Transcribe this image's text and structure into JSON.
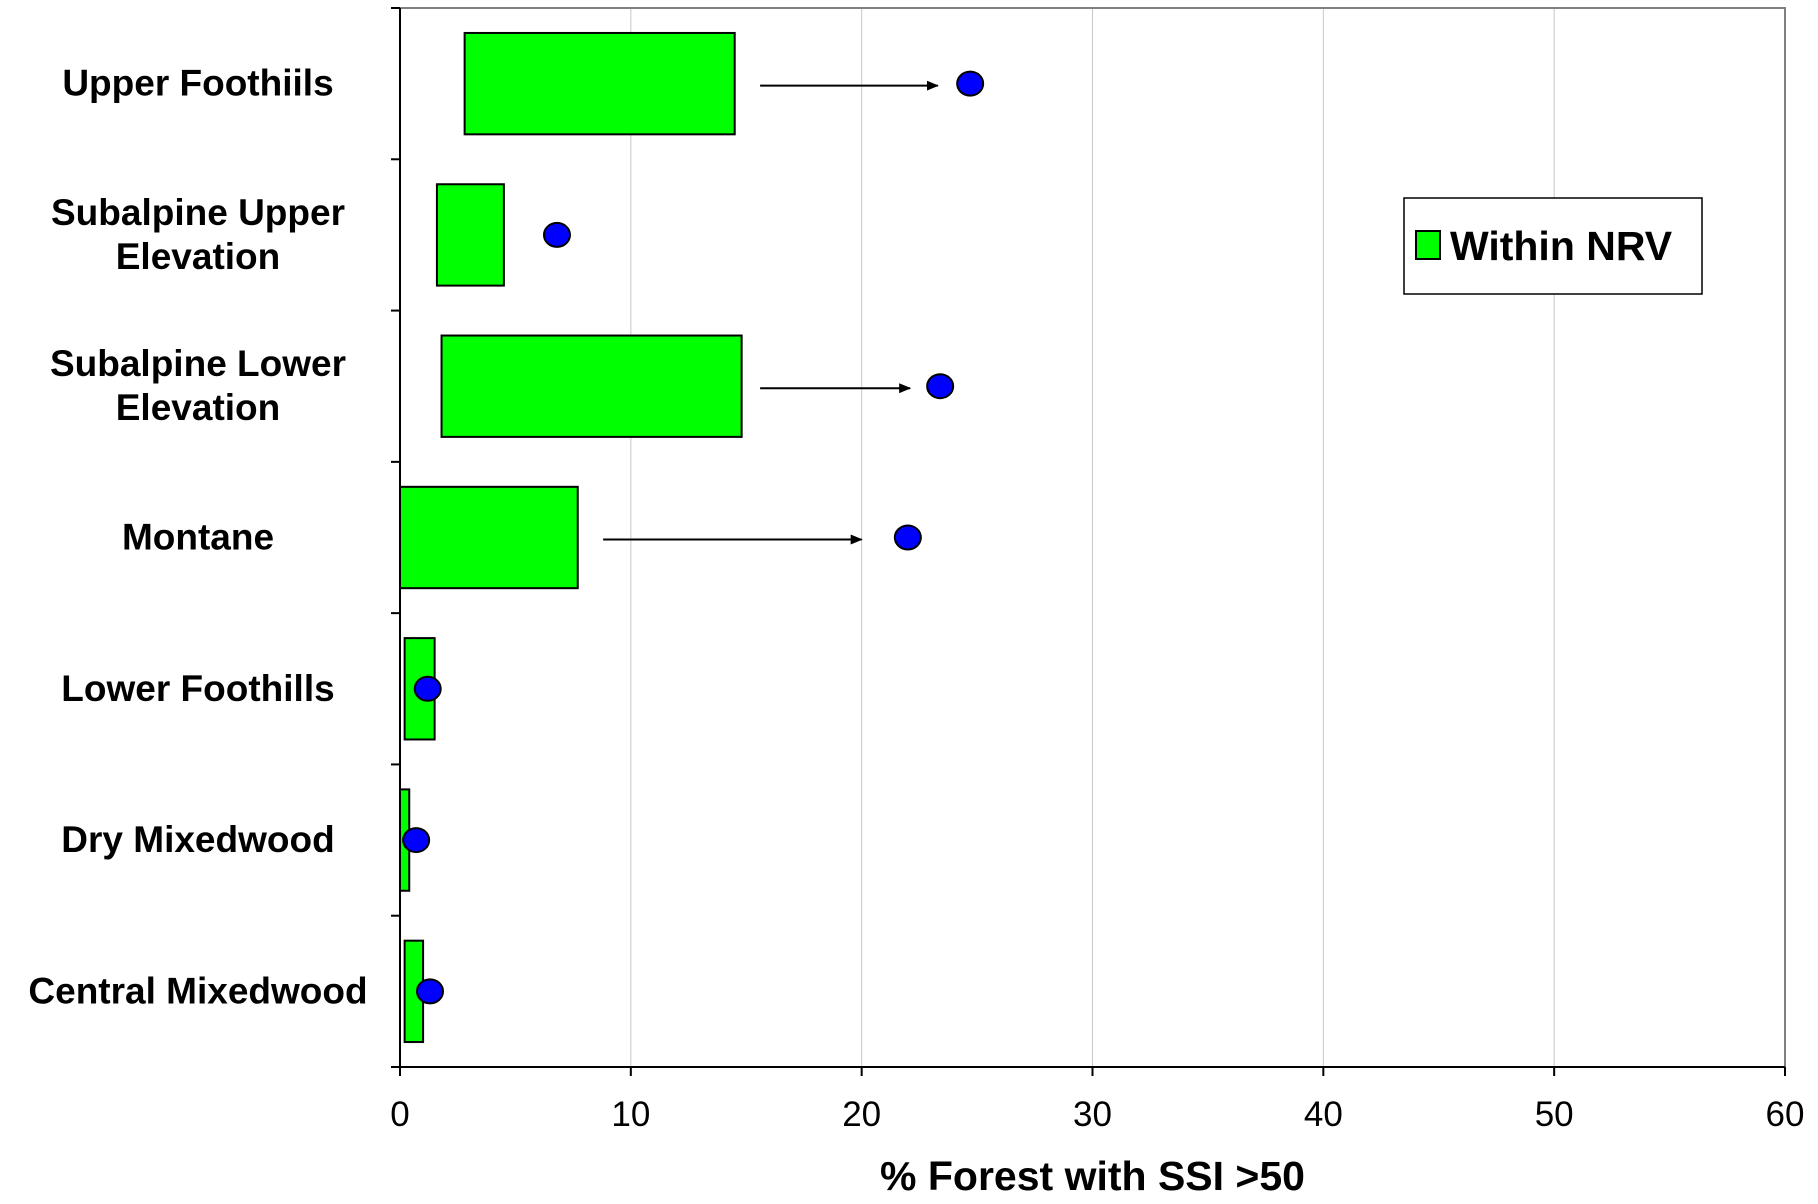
{
  "chart_data": {
    "type": "bar",
    "orientation": "horizontal",
    "categories": [
      [
        "Upper Foothiils"
      ],
      [
        "Subalpine Upper",
        "Elevation"
      ],
      [
        "Subalpine Lower",
        "Elevation"
      ],
      [
        "Montane"
      ],
      [
        "Lower Foothills"
      ],
      [
        "Dry Mixedwood"
      ],
      [
        "Central Mixedwood"
      ]
    ],
    "series": [
      {
        "name": "Within NRV",
        "kind": "floating-range",
        "color": "#00ff00",
        "ranges": [
          [
            2.8,
            14.5
          ],
          [
            1.6,
            4.5
          ],
          [
            1.8,
            14.8
          ],
          [
            0.0,
            7.7
          ],
          [
            0.2,
            1.5
          ],
          [
            0.0,
            0.4
          ],
          [
            0.2,
            1.0
          ]
        ]
      },
      {
        "kind": "point",
        "color": "#0000ff",
        "values": [
          24.7,
          6.8,
          23.4,
          22.0,
          1.2,
          0.7,
          1.3
        ]
      }
    ],
    "arrows": [
      {
        "category_index": 0,
        "from": 15.6,
        "to": 23.3
      },
      {
        "category_index": 2,
        "from": 15.6,
        "to": 22.1
      },
      {
        "category_index": 3,
        "from": 8.8,
        "to": 20.0
      }
    ],
    "xlabel": "% Forest with SSI >50",
    "ylabel": "",
    "xlim": [
      0,
      60
    ],
    "xticks": [
      0,
      10,
      20,
      30,
      40,
      50,
      60
    ],
    "grid": "vertical",
    "legend": {
      "position": "top-right",
      "label": "Within NRV"
    }
  }
}
